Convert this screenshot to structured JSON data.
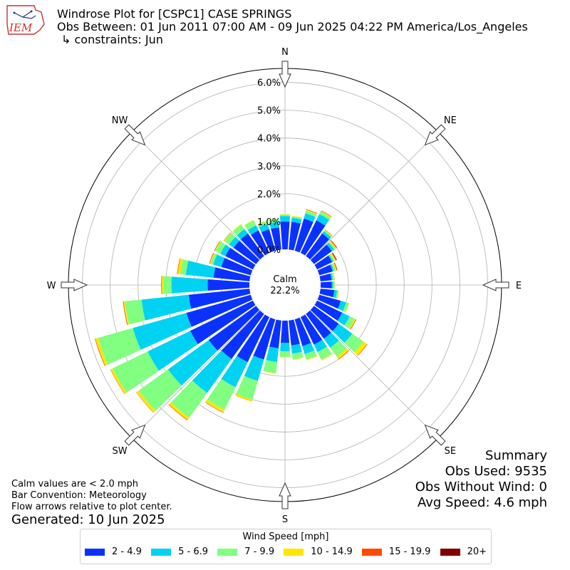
{
  "logo": {
    "text": "IEM"
  },
  "header": {
    "title": "Windrose Plot for [CSPC1] CASE SPRINGS",
    "obs_between": "Obs Between: 01 Jun 2011 07:00 AM - 09 Jun 2025 04:22 PM America/Los_Angeles",
    "constraints": "↳ constraints: Jun"
  },
  "calm": {
    "label": "Calm",
    "value": "22.2%"
  },
  "footer": {
    "note1": "Calm values are < 2.0 mph",
    "note2": "Bar Convention: Meteorology",
    "note3": "Flow arrows relative to plot center.",
    "generated": "Generated: 10 Jun 2025"
  },
  "summary": {
    "title": "Summary",
    "obs_used": "Obs Used: 9535",
    "obs_without_wind": "Obs Without Wind: 0",
    "avg_speed": "Avg Speed: 4.6 mph"
  },
  "legend": {
    "title": "Wind Speed [mph]",
    "items": [
      {
        "label": "2 - 4.9",
        "color": "#0a32ff"
      },
      {
        "label": "5 - 6.9",
        "color": "#00d2f2"
      },
      {
        "label": "7 - 9.9",
        "color": "#80ff80"
      },
      {
        "label": "10 - 14.9",
        "color": "#ffe600"
      },
      {
        "label": "15 - 19.9",
        "color": "#ff4a00"
      },
      {
        "label": "20+",
        "color": "#800000"
      }
    ]
  },
  "chart_data": {
    "type": "windrose",
    "title": "Windrose Plot for [CSPC1] CASE SPRINGS",
    "calm_pct": 22.2,
    "radial_ticks": [
      "0.0%",
      "1.0%",
      "2.0%",
      "3.0%",
      "4.0%",
      "5.0%",
      "6.0%"
    ],
    "radial_max": 6.5,
    "compass_labels": [
      "N",
      "NE",
      "E",
      "SE",
      "S",
      "SW",
      "W",
      "NW"
    ],
    "speed_bins": [
      "2 - 4.9",
      "5 - 6.9",
      "7 - 9.9",
      "10 - 14.9",
      "15 - 19.9",
      "20+"
    ],
    "bin_colors": [
      "#0a32ff",
      "#00d2f2",
      "#80ff80",
      "#ffe600",
      "#ff4a00",
      "#800000"
    ],
    "directions": [
      0,
      10,
      20,
      30,
      40,
      50,
      60,
      70,
      80,
      90,
      100,
      110,
      120,
      130,
      140,
      150,
      160,
      170,
      180,
      190,
      200,
      210,
      220,
      230,
      240,
      250,
      260,
      270,
      280,
      290,
      300,
      310,
      320,
      330,
      340,
      350
    ],
    "series": [
      {
        "name": "2 - 4.9",
        "values": [
          1.0,
          1.0,
          1.2,
          1.3,
          1.0,
          0.8,
          0.6,
          0.5,
          0.4,
          0.4,
          0.5,
          0.8,
          1.0,
          1.1,
          1.1,
          1.1,
          1.0,
          0.9,
          0.8,
          1.0,
          1.5,
          1.8,
          2.0,
          2.1,
          2.5,
          2.4,
          2.2,
          1.5,
          1.3,
          1.1,
          1.1,
          1.0,
          1.0,
          0.9,
          0.8,
          0.8
        ]
      },
      {
        "name": "5 - 6.9",
        "values": [
          0.2,
          0.15,
          0.2,
          0.25,
          0.1,
          0.1,
          0.05,
          0.05,
          0.05,
          0.05,
          0.1,
          0.2,
          0.3,
          0.6,
          0.4,
          0.3,
          0.3,
          0.3,
          0.3,
          0.5,
          0.8,
          1.0,
          1.5,
          1.8,
          1.7,
          2.0,
          1.7,
          1.3,
          1.0,
          0.3,
          0.2,
          0.2,
          0.2,
          0.2,
          0.2,
          0.2
        ]
      },
      {
        "name": "7 - 9.9",
        "values": [
          0.05,
          0.05,
          0.1,
          0.1,
          0.05,
          0.05,
          0.05,
          0.05,
          0.05,
          0.05,
          0.05,
          0.1,
          0.2,
          0.5,
          0.4,
          0.3,
          0.2,
          0.2,
          0.2,
          0.4,
          0.7,
          0.9,
          1.1,
          1.3,
          1.4,
          1.3,
          0.6,
          0.3,
          0.2,
          0.1,
          0.2,
          0.2,
          0.2,
          0.2,
          0.1,
          0.1
        ]
      },
      {
        "name": "10 - 14.9",
        "values": [
          0.02,
          0.02,
          0.03,
          0.03,
          0.02,
          0.05,
          0.05,
          0.05,
          0.02,
          0.02,
          0.02,
          0.02,
          0.05,
          0.15,
          0.1,
          0.03,
          0.03,
          0.02,
          0.02,
          0.02,
          0.06,
          0.1,
          0.1,
          0.1,
          0.08,
          0.1,
          0.05,
          0.05,
          0.1,
          0.03,
          0.03,
          0.03,
          0.02,
          0.02,
          0.02,
          0.02
        ]
      },
      {
        "name": "15 - 19.9",
        "values": [
          0,
          0,
          0.02,
          0.02,
          0.01,
          0.02,
          0.02,
          0.02,
          0,
          0,
          0,
          0,
          0.02,
          0.02,
          0.02,
          0,
          0,
          0,
          0,
          0,
          0.01,
          0.02,
          0.02,
          0.01,
          0.01,
          0.02,
          0.02,
          0.02,
          0.02,
          0.02,
          0.02,
          0.01,
          0,
          0,
          0,
          0
        ]
      },
      {
        "name": "20+",
        "values": [
          0,
          0,
          0,
          0,
          0,
          0.01,
          0.02,
          0.01,
          0,
          0,
          0,
          0,
          0,
          0,
          0,
          0,
          0,
          0,
          0,
          0,
          0,
          0,
          0,
          0,
          0,
          0,
          0,
          0,
          0,
          0,
          0,
          0,
          0,
          0,
          0,
          0
        ]
      }
    ]
  }
}
